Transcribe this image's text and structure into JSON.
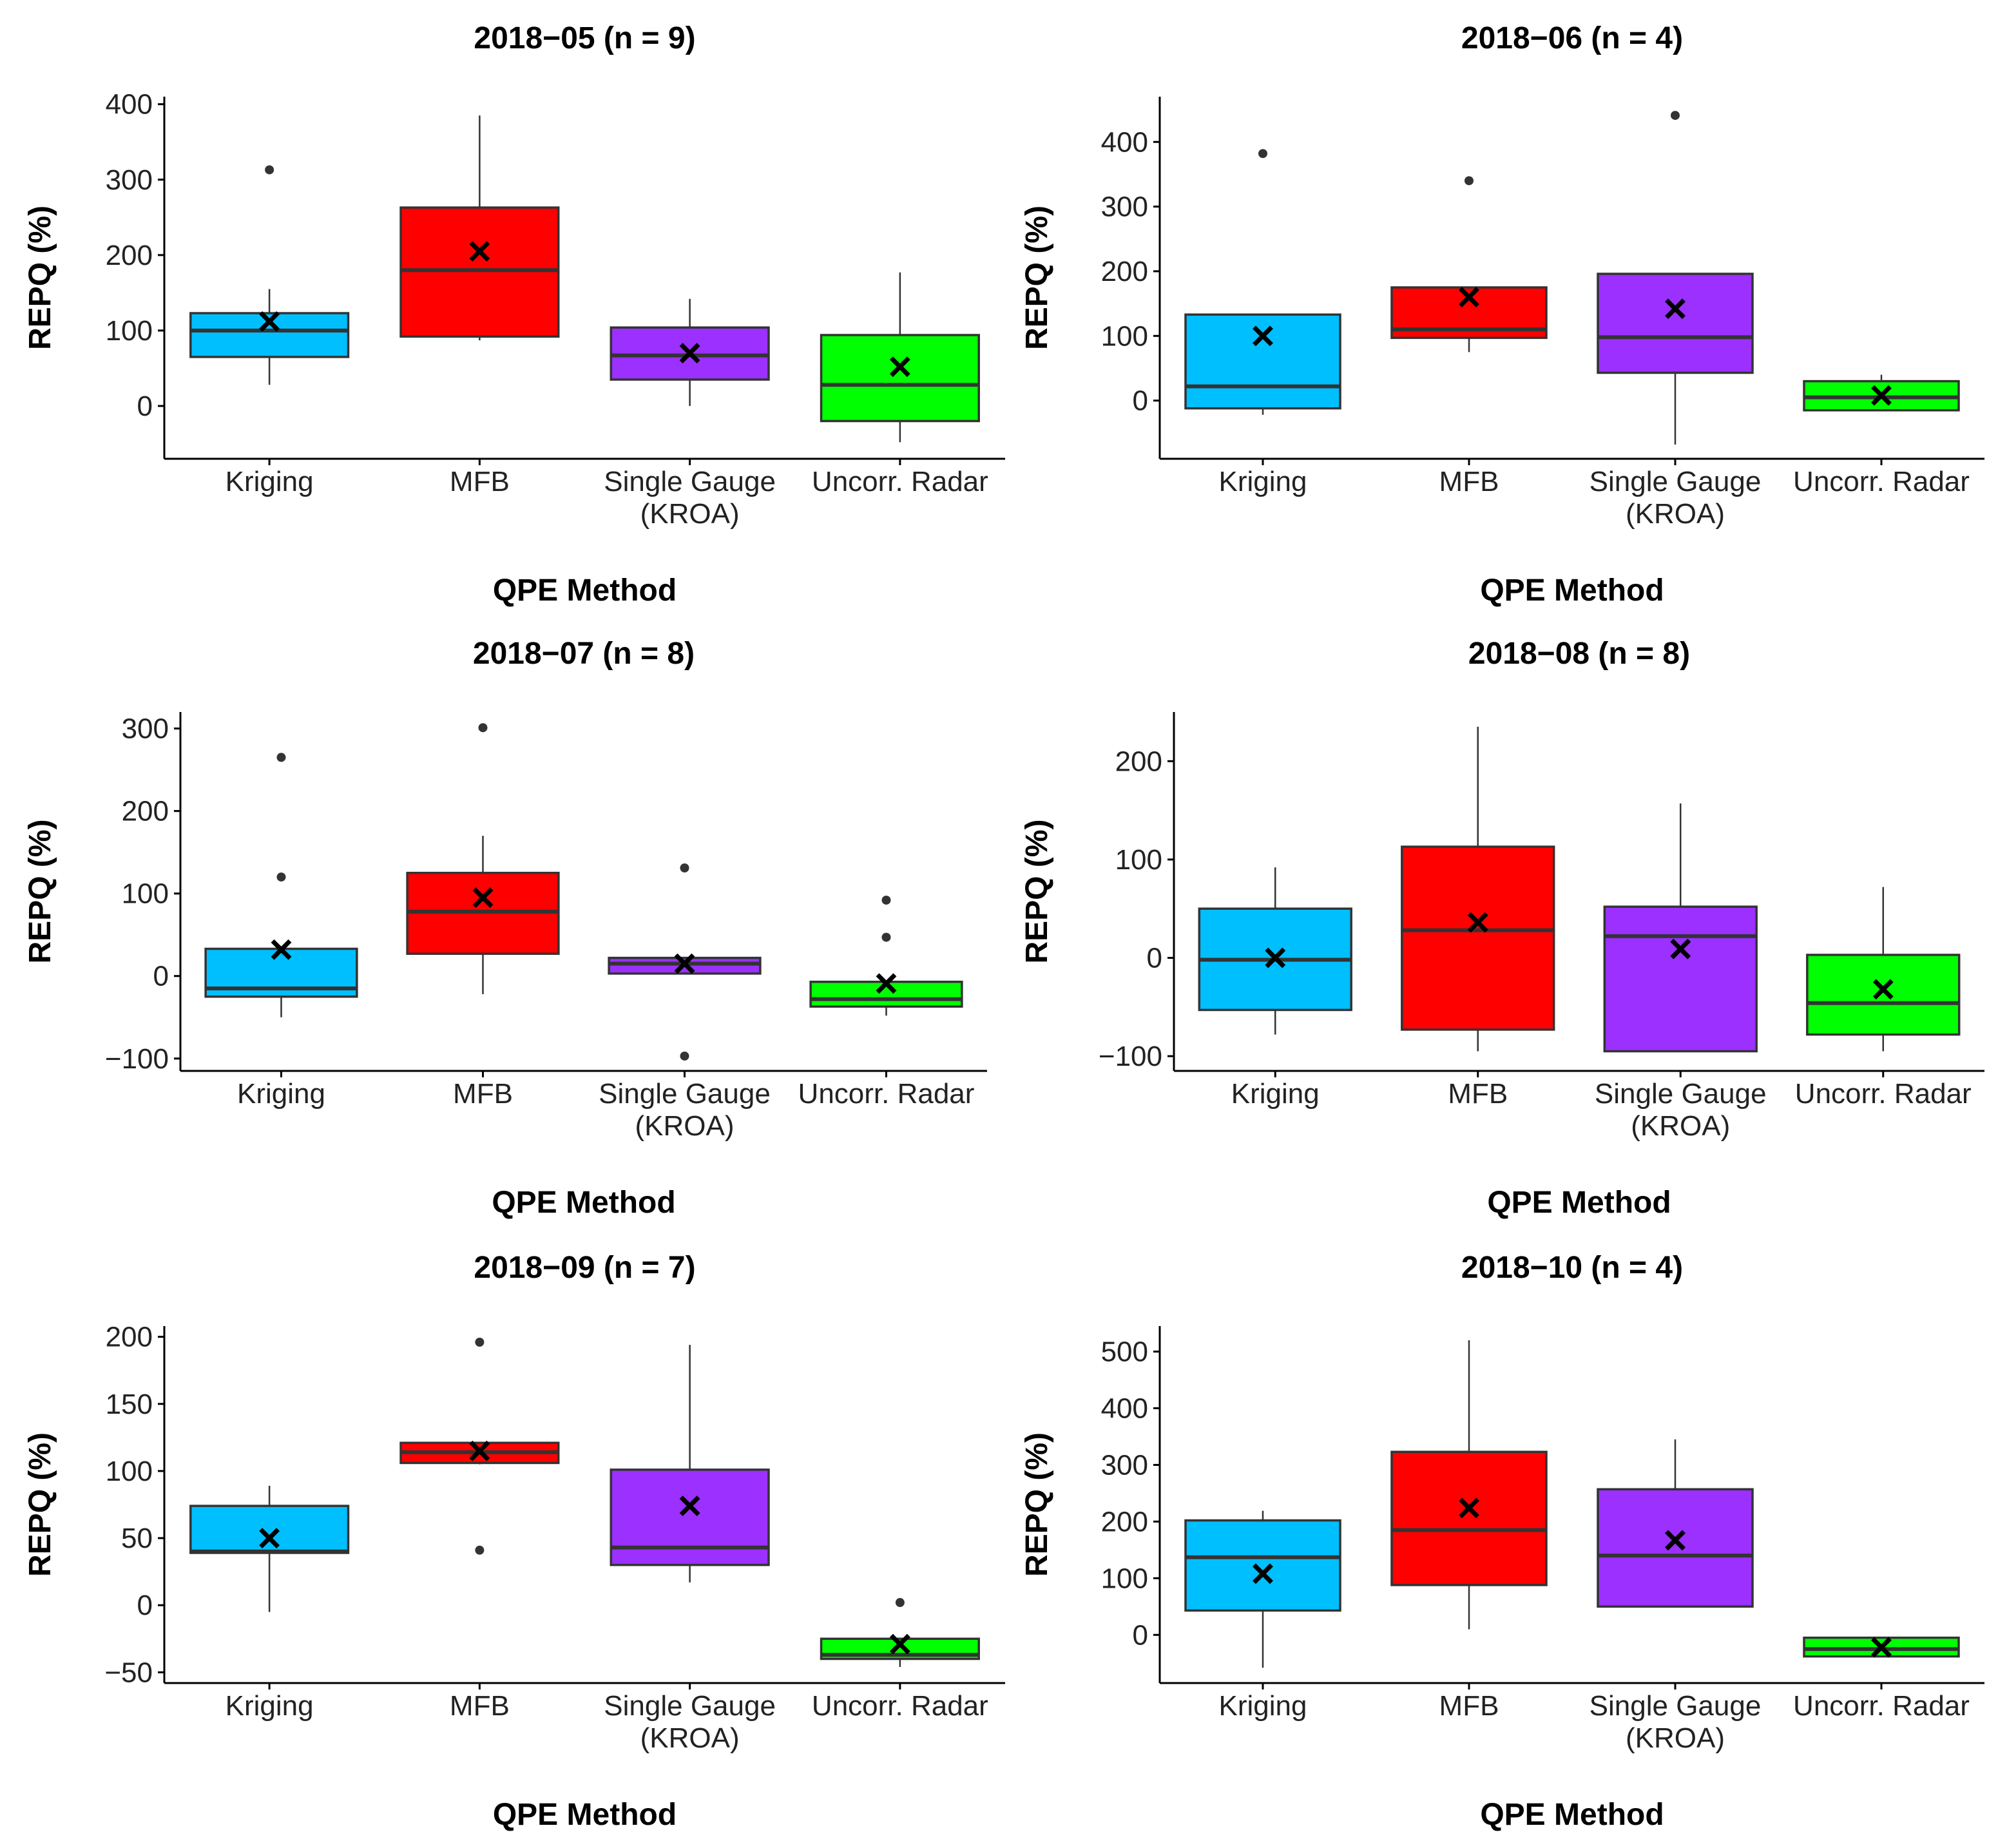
{
  "colors": {
    "Kriging": "#00BFFF",
    "MFB": "#FF0000",
    "Single Gauge (KROA)": "#9B30FF",
    "Uncorr. Radar": "#00FF00"
  },
  "chart_data": [
    {
      "type": "box",
      "title": "2018−05 (n = 9)",
      "xlabel": "QPE Method",
      "ylabel": "REPQ (%)",
      "ylim": [
        -70,
        410
      ],
      "yticks": [
        0,
        100,
        200,
        300,
        400
      ],
      "ytick_labels": [
        "0",
        "100",
        "200",
        "300",
        "400"
      ],
      "categories": [
        "Kriging",
        "MFB",
        "Single Gauge\n(KROA)",
        "Uncorr. Radar"
      ],
      "boxes": [
        {
          "category": "Kriging",
          "lower": 28,
          "q1": 65,
          "median": 100,
          "q3": 123,
          "upper": 155,
          "mean": 112,
          "outliers": [
            313
          ]
        },
        {
          "category": "MFB",
          "lower": 87,
          "q1": 92,
          "median": 180,
          "q3": 263,
          "upper": 385,
          "mean": 205,
          "outliers": []
        },
        {
          "category": "Single Gauge (KROA)",
          "lower": 0,
          "q1": 35,
          "median": 67,
          "q3": 104,
          "upper": 142,
          "mean": 70,
          "outliers": []
        },
        {
          "category": "Uncorr. Radar",
          "lower": -48,
          "q1": -20,
          "median": 28,
          "q3": 94,
          "upper": 177,
          "mean": 52,
          "outliers": []
        }
      ]
    },
    {
      "type": "box",
      "title": "2018−06 (n = 4)",
      "xlabel": "QPE Method",
      "ylabel": "REPQ (%)",
      "ylim": [
        -90,
        470
      ],
      "yticks": [
        0,
        100,
        200,
        300,
        400
      ],
      "ytick_labels": [
        "0",
        "100",
        "200",
        "300",
        "400"
      ],
      "categories": [
        "Kriging",
        "MFB",
        "Single Gauge\n(KROA)",
        "Uncorr. Radar"
      ],
      "boxes": [
        {
          "category": "Kriging",
          "lower": -22,
          "q1": -12,
          "median": 22,
          "q3": 133,
          "upper": 133,
          "mean": 100,
          "outliers": [
            382
          ]
        },
        {
          "category": "MFB",
          "lower": 75,
          "q1": 97,
          "median": 110,
          "q3": 175,
          "upper": 175,
          "mean": 160,
          "outliers": [
            340
          ]
        },
        {
          "category": "Single Gauge (KROA)",
          "lower": -68,
          "q1": 43,
          "median": 98,
          "q3": 196,
          "upper": 196,
          "mean": 142,
          "outliers": [
            441
          ]
        },
        {
          "category": "Uncorr. Radar",
          "lower": -15,
          "q1": -15,
          "median": 5,
          "q3": 30,
          "upper": 40,
          "mean": 8,
          "outliers": []
        }
      ]
    },
    {
      "type": "box",
      "title": "2018−07 (n = 8)",
      "xlabel": "QPE Method",
      "ylabel": "REPQ (%)",
      "ylim": [
        -115,
        320
      ],
      "yticks": [
        -100,
        0,
        100,
        200,
        300
      ],
      "ytick_labels": [
        "−100",
        "0",
        "100",
        "200",
        "300"
      ],
      "categories": [
        "Kriging",
        "MFB",
        "Single Gauge\n(KROA)",
        "Uncorr. Radar"
      ],
      "boxes": [
        {
          "category": "Kriging",
          "lower": -50,
          "q1": -25,
          "median": -15,
          "q3": 33,
          "upper": 33,
          "mean": 32,
          "outliers": [
            265,
            120
          ]
        },
        {
          "category": "MFB",
          "lower": -22,
          "q1": 27,
          "median": 78,
          "q3": 125,
          "upper": 170,
          "mean": 95,
          "outliers": [
            301
          ]
        },
        {
          "category": "Single Gauge (KROA)",
          "lower": 3,
          "q1": 3,
          "median": 15,
          "q3": 22,
          "upper": 22,
          "mean": 15,
          "outliers": [
            131,
            -97
          ]
        },
        {
          "category": "Uncorr. Radar",
          "lower": -48,
          "q1": -37,
          "median": -28,
          "q3": -7,
          "upper": -7,
          "mean": -9,
          "outliers": [
            92,
            47
          ]
        }
      ]
    },
    {
      "type": "box",
      "title": "2018−08 (n = 8)",
      "xlabel": "QPE Method",
      "ylabel": "REPQ (%)",
      "ylim": [
        -115,
        250
      ],
      "yticks": [
        -100,
        0,
        100,
        200
      ],
      "ytick_labels": [
        "−100",
        "0",
        "100",
        "200"
      ],
      "categories": [
        "Kriging",
        "MFB",
        "Single Gauge\n(KROA)",
        "Uncorr. Radar"
      ],
      "boxes": [
        {
          "category": "Kriging",
          "lower": -78,
          "q1": -53,
          "median": -2,
          "q3": 50,
          "upper": 92,
          "mean": 0,
          "outliers": []
        },
        {
          "category": "MFB",
          "lower": -95,
          "q1": -73,
          "median": 28,
          "q3": 113,
          "upper": 235,
          "mean": 36,
          "outliers": []
        },
        {
          "category": "Single Gauge (KROA)",
          "lower": -95,
          "q1": -95,
          "median": 22,
          "q3": 52,
          "upper": 157,
          "mean": 9,
          "outliers": []
        },
        {
          "category": "Uncorr. Radar",
          "lower": -95,
          "q1": -78,
          "median": -46,
          "q3": 3,
          "upper": 72,
          "mean": -32,
          "outliers": []
        }
      ]
    },
    {
      "type": "box",
      "title": "2018−09 (n = 7)",
      "xlabel": "QPE Method",
      "ylabel": "REPQ (%)",
      "ylim": [
        -58,
        208
      ],
      "yticks": [
        -50,
        0,
        50,
        100,
        150,
        200
      ],
      "ytick_labels": [
        "−50",
        "0",
        "50",
        "100",
        "150",
        "200"
      ],
      "categories": [
        "Kriging",
        "MFB",
        "Single Gauge\n(KROA)",
        "Uncorr. Radar"
      ],
      "boxes": [
        {
          "category": "Kriging",
          "lower": -5,
          "q1": 39,
          "median": 40,
          "q3": 74,
          "upper": 89,
          "mean": 50,
          "outliers": []
        },
        {
          "category": "MFB",
          "lower": 105,
          "q1": 106,
          "median": 114,
          "q3": 121,
          "upper": 121,
          "mean": 115,
          "outliers": [
            196,
            41
          ]
        },
        {
          "category": "Single Gauge (KROA)",
          "lower": 17,
          "q1": 30,
          "median": 43,
          "q3": 101,
          "upper": 194,
          "mean": 74,
          "outliers": []
        },
        {
          "category": "Uncorr. Radar",
          "lower": -46,
          "q1": -40,
          "median": -37,
          "q3": -25,
          "upper": -25,
          "mean": -29,
          "outliers": [
            2
          ]
        }
      ]
    },
    {
      "type": "box",
      "title": "2018−10 (n = 4)",
      "xlabel": "QPE Method",
      "ylabel": "REPQ (%)",
      "ylim": [
        -85,
        545
      ],
      "yticks": [
        0,
        100,
        200,
        300,
        400,
        500
      ],
      "ytick_labels": [
        "0",
        "100",
        "200",
        "300",
        "400",
        "500"
      ],
      "categories": [
        "Kriging",
        "MFB",
        "Single Gauge\n(KROA)",
        "Uncorr. Radar"
      ],
      "boxes": [
        {
          "category": "Kriging",
          "lower": -58,
          "q1": 43,
          "median": 137,
          "q3": 202,
          "upper": 219,
          "mean": 108,
          "outliers": []
        },
        {
          "category": "MFB",
          "lower": 10,
          "q1": 88,
          "median": 185,
          "q3": 323,
          "upper": 520,
          "mean": 224,
          "outliers": []
        },
        {
          "category": "Single Gauge (KROA)",
          "lower": 50,
          "q1": 50,
          "median": 140,
          "q3": 257,
          "upper": 345,
          "mean": 167,
          "outliers": []
        },
        {
          "category": "Uncorr. Radar",
          "lower": -38,
          "q1": -38,
          "median": -25,
          "q3": -5,
          "upper": -5,
          "mean": -22,
          "outliers": []
        }
      ]
    }
  ]
}
